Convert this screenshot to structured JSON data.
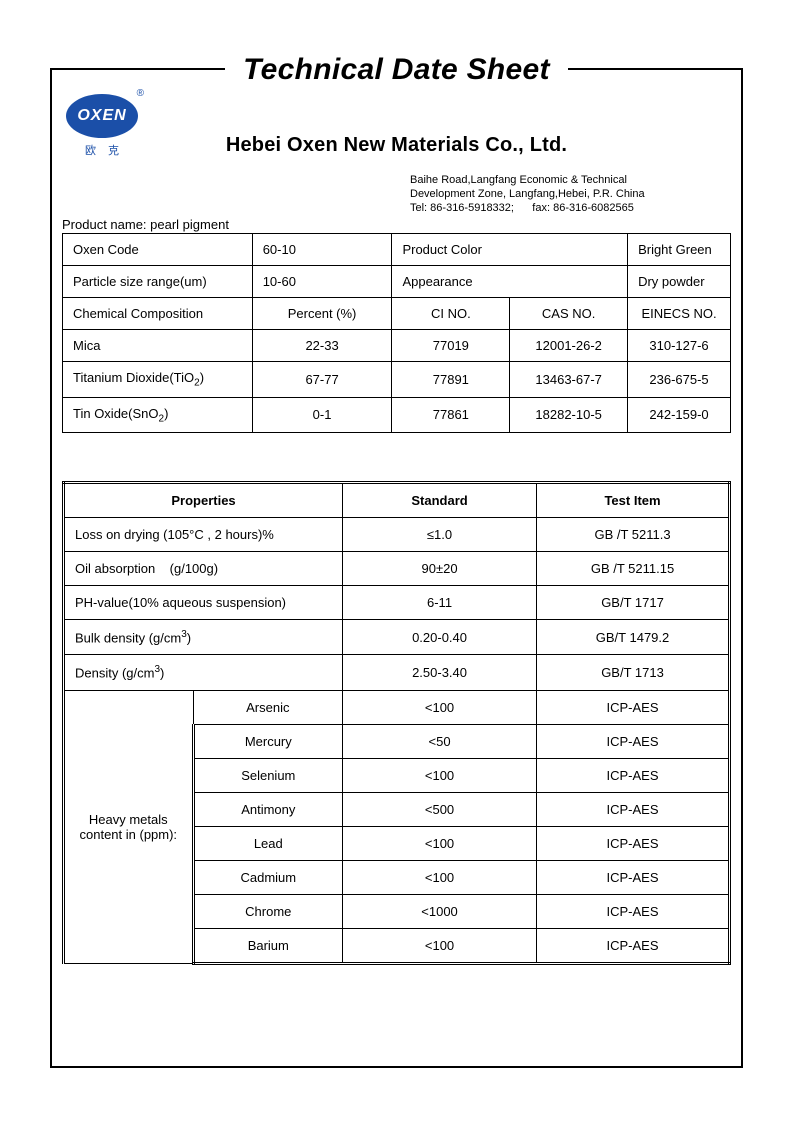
{
  "title": "Technical Date Sheet",
  "logo": {
    "text": "OXEN",
    "cn": "欧克",
    "reg": "®"
  },
  "company": "Hebei Oxen New Materials Co., Ltd.",
  "address": {
    "line1": "Baihe Road,Langfang Economic & Technical",
    "line2": "Development Zone, Langfang,Hebei, P.R. China",
    "line3": "Tel: 86-316-5918332;      fax: 86-316-6082565"
  },
  "product_name_label": "Product name: pearl pigment",
  "table1": {
    "row1": {
      "a": "Oxen Code",
      "b": "60-10",
      "c": "Product Color",
      "d": "Bright Green"
    },
    "row2": {
      "a": "Particle size range(um)",
      "b": "10-60",
      "c": "Appearance",
      "d": "Dry powder"
    },
    "row3": {
      "a": "Chemical Composition",
      "b": "Percent (%)",
      "c": "CI NO.",
      "d": "CAS NO.",
      "e": "EINECS NO."
    },
    "row4": {
      "a": "Mica",
      "b": "22-33",
      "c": "77019",
      "d": "12001-26-2",
      "e": "310-127-6"
    },
    "row5": {
      "a": "Titanium Dioxide(TiO",
      "a2": ")",
      "b": "67-77",
      "c": "77891",
      "d": "13463-67-7",
      "e": "236-675-5"
    },
    "row6": {
      "a": "Tin Oxide(SnO",
      "a2": ")",
      "b": "0-1",
      "c": "77861",
      "d": "18282-10-5",
      "e": "242-159-0"
    }
  },
  "table2": {
    "head": {
      "a": "Properties",
      "b": "Standard",
      "c": "Test Item"
    },
    "r1": {
      "a": "Loss on drying (105°C , 2 hours)%",
      "b": "≤1.0",
      "c": "GB /T 5211.3"
    },
    "r2": {
      "a": "Oil absorption    (g/100g)",
      "b": "90±20",
      "c": "GB /T 5211.15"
    },
    "r3": {
      "a": "PH-value(10% aqueous suspension)",
      "b": "6-11",
      "c": "GB/T 1717"
    },
    "r4": {
      "a1": "Bulk density (g/cm",
      "a2": ")",
      "b": "0.20-0.40",
      "c": "GB/T 1479.2"
    },
    "r5": {
      "a1": "Density (g/cm",
      "a2": ")",
      "b": "2.50-3.40",
      "c": "GB/T 1713"
    },
    "heavy_label": "Heavy metals content in (ppm):",
    "m1": {
      "n": "Arsenic",
      "v": "<100",
      "t": "ICP-AES"
    },
    "m2": {
      "n": "Mercury",
      "v": "<50",
      "t": "ICP-AES"
    },
    "m3": {
      "n": "Selenium",
      "v": "<100",
      "t": "ICP-AES"
    },
    "m4": {
      "n": "Antimony",
      "v": "<500",
      "t": "ICP-AES"
    },
    "m5": {
      "n": "Lead",
      "v": "<100",
      "t": "ICP-AES"
    },
    "m6": {
      "n": "Cadmium",
      "v": "<100",
      "t": "ICP-AES"
    },
    "m7": {
      "n": "Chrome",
      "v": "<1000",
      "t": "ICP-AES"
    },
    "m8": {
      "n": "Barium",
      "v": "<100",
      "t": "ICP-AES"
    }
  }
}
